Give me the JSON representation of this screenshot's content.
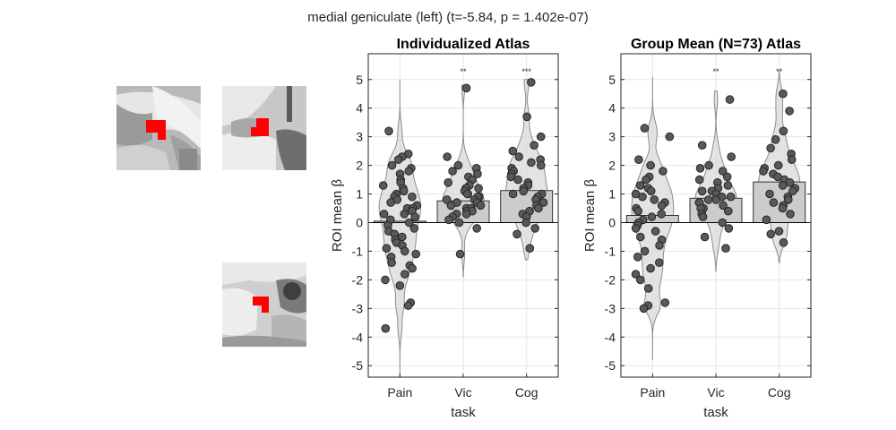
{
  "figure": {
    "suptitle": "medial geniculate (left) (t=-5.84, p = 1.402e-07)"
  },
  "chart_data": [
    {
      "type": "bar",
      "title": "Individualized Atlas",
      "xlabel": "task",
      "ylabel": "ROI mean β",
      "categories": [
        "Pain",
        "Vic",
        "Cog"
      ],
      "values": [
        0.05,
        0.76,
        1.12
      ],
      "significance": [
        "",
        "**",
        "***"
      ],
      "ylim": [
        -5.4,
        5.9
      ],
      "yticks": [
        -5,
        -4,
        -3,
        -2,
        -1,
        0,
        1,
        2,
        3,
        4,
        5
      ],
      "grid": true,
      "violin_range": [
        [
          -5.4,
          5.0
        ],
        [
          -1.9,
          4.8
        ],
        [
          -1.3,
          5.0
        ]
      ],
      "points": {
        "Pain": [
          3.2,
          2.4,
          2.3,
          2.2,
          2.0,
          1.9,
          1.8,
          1.7,
          1.5,
          1.4,
          1.3,
          1.2,
          1.1,
          1.0,
          0.9,
          0.9,
          0.8,
          0.7,
          0.6,
          0.5,
          0.5,
          0.4,
          0.3,
          0.3,
          0.2,
          0.1,
          0.0,
          -0.1,
          -0.2,
          -0.3,
          -0.4,
          -0.5,
          -0.6,
          -0.7,
          -0.8,
          -0.9,
          -1.0,
          -1.1,
          -1.2,
          -1.4,
          -1.5,
          -1.6,
          -1.8,
          -2.0,
          -2.2,
          -2.8,
          -2.9,
          -3.7
        ],
        "Vic": [
          4.7,
          2.3,
          2.0,
          1.9,
          1.8,
          1.7,
          1.6,
          1.5,
          1.4,
          1.3,
          1.2,
          1.2,
          1.1,
          1.0,
          1.0,
          0.9,
          0.9,
          0.8,
          0.8,
          0.7,
          0.7,
          0.6,
          0.6,
          0.5,
          0.5,
          0.4,
          0.4,
          0.3,
          0.3,
          0.2,
          0.1,
          0.0,
          -0.2,
          -1.1
        ],
        "Cog": [
          4.9,
          3.7,
          3.0,
          2.7,
          2.5,
          2.3,
          2.2,
          2.1,
          2.0,
          1.9,
          1.8,
          1.7,
          1.6,
          1.5,
          1.4,
          1.3,
          1.2,
          1.1,
          1.0,
          1.0,
          0.9,
          0.8,
          0.7,
          0.6,
          0.5,
          0.4,
          0.3,
          0.2,
          0.0,
          -0.2,
          -0.4,
          -0.9
        ]
      }
    },
    {
      "type": "bar",
      "title": "Group Mean (N=73) Atlas",
      "xlabel": "task",
      "ylabel": "ROI mean β",
      "categories": [
        "Pain",
        "Vic",
        "Cog"
      ],
      "values": [
        0.25,
        0.85,
        1.42
      ],
      "significance": [
        "",
        "**",
        "**"
      ],
      "ylim": [
        -5.4,
        5.9
      ],
      "yticks": [
        -5,
        -4,
        -3,
        -2,
        -1,
        0,
        1,
        2,
        3,
        4,
        5
      ],
      "grid": true,
      "violin_range": [
        [
          -4.8,
          5.1
        ],
        [
          -1.7,
          4.6
        ],
        [
          -1.4,
          5.3
        ]
      ],
      "points": {
        "Pain": [
          3.3,
          3.0,
          2.2,
          2.0,
          1.8,
          1.6,
          1.5,
          1.3,
          1.2,
          1.1,
          1.0,
          0.9,
          0.8,
          0.7,
          0.6,
          0.5,
          0.4,
          0.3,
          0.2,
          0.1,
          0.0,
          -0.1,
          -0.2,
          -0.3,
          -0.5,
          -0.6,
          -0.8,
          -1.0,
          -1.2,
          -1.4,
          -1.6,
          -1.8,
          -2.0,
          -2.3,
          -2.8,
          -2.9,
          -3.0
        ],
        "Vic": [
          4.3,
          2.7,
          2.3,
          2.0,
          1.9,
          1.8,
          1.6,
          1.5,
          1.4,
          1.3,
          1.2,
          1.1,
          1.1,
          1.0,
          0.9,
          0.9,
          0.8,
          0.8,
          0.7,
          0.7,
          0.6,
          0.5,
          0.5,
          0.4,
          0.3,
          0.2,
          0.0,
          -0.2,
          -0.5,
          -0.9
        ],
        "Cog": [
          4.5,
          3.9,
          3.2,
          2.9,
          2.6,
          2.4,
          2.2,
          2.0,
          1.9,
          1.8,
          1.7,
          1.6,
          1.5,
          1.4,
          1.3,
          1.2,
          1.1,
          1.0,
          0.9,
          0.8,
          0.7,
          0.6,
          0.5,
          0.3,
          0.1,
          -0.3,
          -0.4,
          -0.7
        ]
      }
    }
  ],
  "colors": {
    "bar_fill": "#cccccc",
    "bar_edge": "#333333",
    "violin_fill": "#d9d9d9",
    "violin_edge": "#8c8c8c",
    "point_fill": "#595959",
    "point_edge": "#262626",
    "roi": "#ff0000"
  }
}
